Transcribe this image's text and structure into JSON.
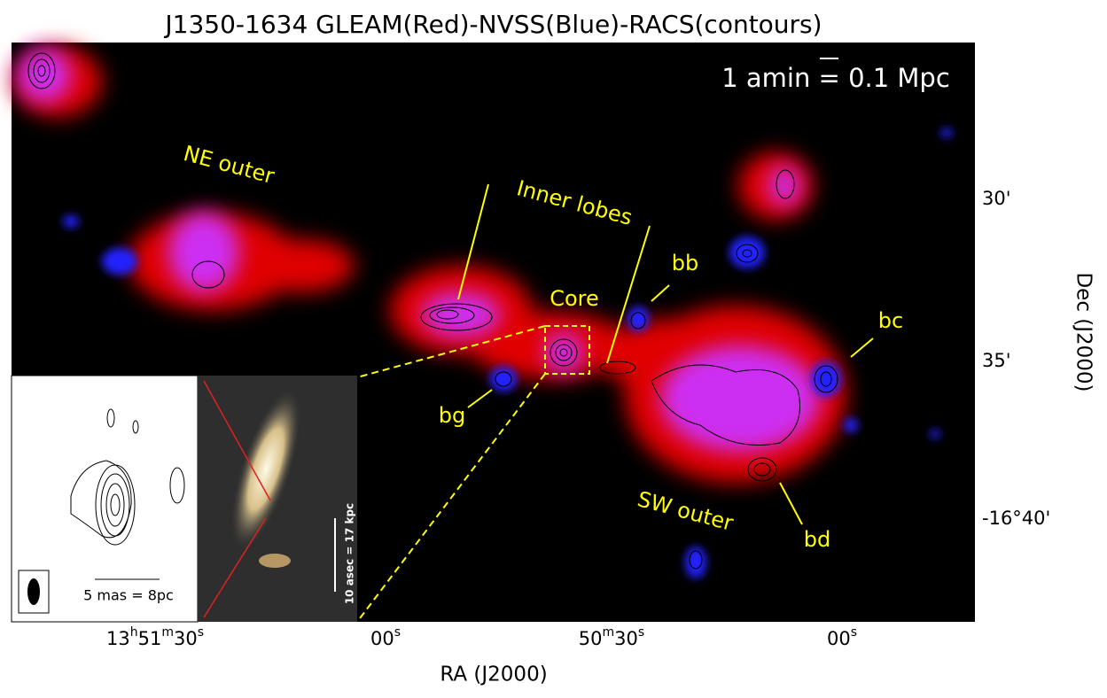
{
  "title": "J1350-1634 GLEAM(Red)-NVSS(Blue)-RACS(contours)",
  "scale_label": "1 amin = 0.1 Mpc",
  "annotations": [
    "NE outer",
    "Inner lobes",
    "Core",
    "bb",
    "bc",
    "bg",
    "bd",
    "SW outer"
  ],
  "x_ticks": [
    [
      "13",
      "h",
      "51",
      "m",
      "30",
      "s"
    ],
    [
      "00",
      "s"
    ],
    [
      "50",
      "m",
      "30",
      "s"
    ],
    [
      "00",
      "s"
    ]
  ],
  "x_label": "RA (J2000)",
  "y_ticks": [
    "30'",
    "35'",
    "-16°40'"
  ],
  "y_label": "Dec (J2000)",
  "vlbi_inset_label": "5 mas = 8pc",
  "optical_inset_label": "10 asec = 17 kpc"
}
